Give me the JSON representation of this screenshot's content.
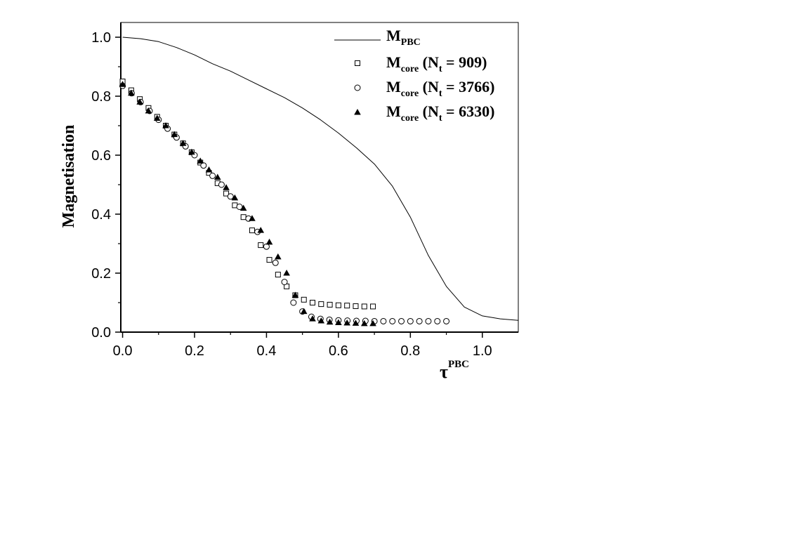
{
  "chart_data": {
    "type": "scatter",
    "xlabel": "τ",
    "xlabel_sup": "PBC",
    "ylabel": "Magnetisation",
    "xlim": [
      -0.005,
      1.1
    ],
    "ylim": [
      0.0,
      1.05
    ],
    "x_ticks": [
      "0.0",
      "0.2",
      "0.4",
      "0.6",
      "0.8",
      "1.0"
    ],
    "x_tick_values": [
      0.0,
      0.2,
      0.4,
      0.6,
      0.8,
      1.0
    ],
    "y_ticks": [
      "0.0",
      "0.2",
      "0.4",
      "0.6",
      "0.8",
      "1.0"
    ],
    "y_tick_values": [
      0.0,
      0.2,
      0.4,
      0.6,
      0.8,
      1.0
    ],
    "grid": false,
    "legend_position": "top-right",
    "series": [
      {
        "key": "pbc",
        "style": "line",
        "legend_main": "M",
        "legend_sub": "PBC",
        "legend_tail": "",
        "x": [
          0.0,
          0.05,
          0.1,
          0.15,
          0.2,
          0.25,
          0.3,
          0.35,
          0.4,
          0.45,
          0.5,
          0.55,
          0.6,
          0.65,
          0.7,
          0.75,
          0.8,
          0.85,
          0.9,
          0.95,
          1.0,
          1.05,
          1.1
        ],
        "y": [
          1.0,
          0.995,
          0.985,
          0.965,
          0.94,
          0.91,
          0.885,
          0.855,
          0.825,
          0.795,
          0.76,
          0.72,
          0.675,
          0.625,
          0.57,
          0.495,
          0.39,
          0.26,
          0.155,
          0.085,
          0.055,
          0.045,
          0.04
        ]
      },
      {
        "key": "nt909",
        "style": "open-square",
        "legend_main": "M",
        "legend_sub": "core",
        "legend_tail": " (N",
        "legend_sub2": "t",
        "legend_tail2": " = 909)",
        "x": [
          0.0,
          0.024,
          0.048,
          0.072,
          0.096,
          0.12,
          0.144,
          0.168,
          0.192,
          0.216,
          0.24,
          0.264,
          0.288,
          0.312,
          0.336,
          0.36,
          0.384,
          0.408,
          0.432,
          0.456,
          0.48,
          0.504,
          0.528,
          0.552,
          0.576,
          0.6,
          0.624,
          0.648,
          0.672,
          0.696
        ],
        "y": [
          0.85,
          0.82,
          0.79,
          0.76,
          0.73,
          0.7,
          0.67,
          0.64,
          0.61,
          0.575,
          0.54,
          0.505,
          0.47,
          0.43,
          0.39,
          0.345,
          0.295,
          0.245,
          0.195,
          0.155,
          0.125,
          0.11,
          0.1,
          0.095,
          0.093,
          0.091,
          0.09,
          0.088,
          0.087,
          0.087
        ]
      },
      {
        "key": "nt3766",
        "style": "open-circle",
        "legend_main": "M",
        "legend_sub": "core",
        "legend_tail": " (N",
        "legend_sub2": "t",
        "legend_tail2": " = 3766)",
        "x": [
          0.0,
          0.025,
          0.05,
          0.075,
          0.1,
          0.125,
          0.15,
          0.175,
          0.2,
          0.225,
          0.25,
          0.275,
          0.3,
          0.325,
          0.35,
          0.375,
          0.4,
          0.425,
          0.45,
          0.475,
          0.5,
          0.525,
          0.55,
          0.575,
          0.6,
          0.625,
          0.65,
          0.675,
          0.7,
          0.725,
          0.75,
          0.775,
          0.8,
          0.825,
          0.85,
          0.875,
          0.9
        ],
        "y": [
          0.835,
          0.81,
          0.78,
          0.75,
          0.72,
          0.69,
          0.66,
          0.63,
          0.6,
          0.565,
          0.53,
          0.5,
          0.46,
          0.425,
          0.385,
          0.34,
          0.29,
          0.235,
          0.17,
          0.1,
          0.07,
          0.052,
          0.045,
          0.042,
          0.04,
          0.039,
          0.038,
          0.038,
          0.037,
          0.037,
          0.037,
          0.037,
          0.037,
          0.037,
          0.037,
          0.037,
          0.037
        ]
      },
      {
        "key": "nt6330",
        "style": "filled-triangle",
        "legend_main": "M",
        "legend_sub": "core",
        "legend_tail": " (N",
        "legend_sub2": "t",
        "legend_tail2": " = 6330)",
        "x": [
          0.0,
          0.024,
          0.048,
          0.072,
          0.096,
          0.12,
          0.144,
          0.168,
          0.192,
          0.216,
          0.24,
          0.264,
          0.288,
          0.312,
          0.336,
          0.36,
          0.384,
          0.408,
          0.432,
          0.456,
          0.48,
          0.504,
          0.528,
          0.552,
          0.576,
          0.6,
          0.624,
          0.648,
          0.672,
          0.696
        ],
        "y": [
          0.84,
          0.81,
          0.78,
          0.75,
          0.725,
          0.7,
          0.67,
          0.64,
          0.61,
          0.58,
          0.55,
          0.525,
          0.49,
          0.455,
          0.42,
          0.385,
          0.345,
          0.305,
          0.255,
          0.2,
          0.125,
          0.07,
          0.045,
          0.038,
          0.034,
          0.032,
          0.031,
          0.03,
          0.029,
          0.029
        ]
      }
    ]
  }
}
